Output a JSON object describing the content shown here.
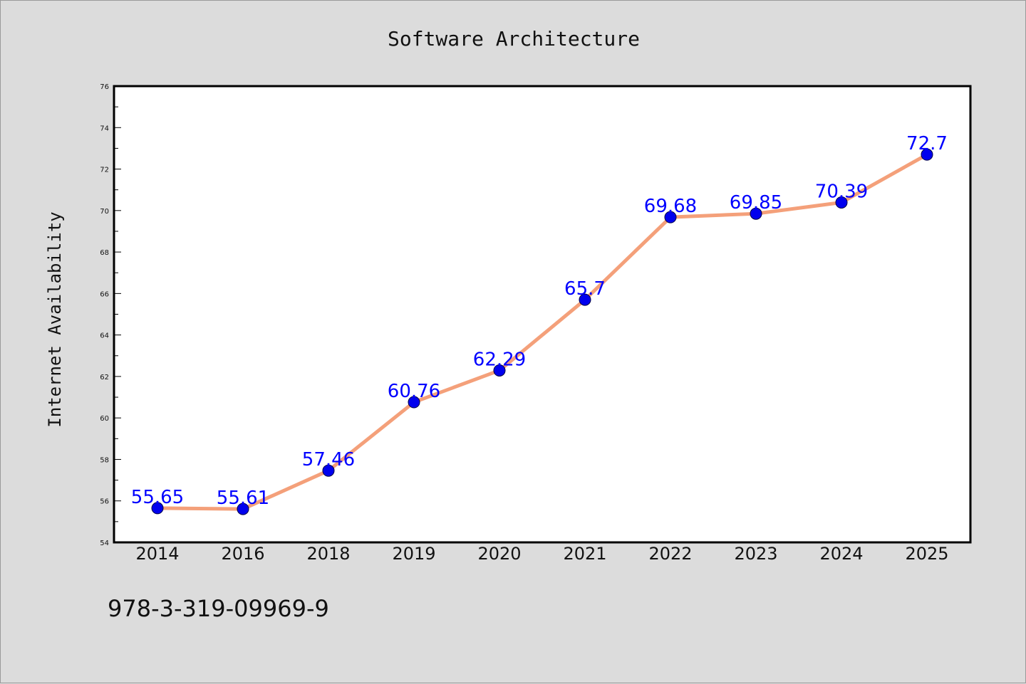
{
  "chart_data": {
    "type": "line",
    "title": "Software Architecture",
    "xlabel": "",
    "ylabel": "Internet Availability",
    "categories": [
      "2014",
      "2016",
      "2018",
      "2019",
      "2020",
      "2021",
      "2022",
      "2023",
      "2024",
      "2025"
    ],
    "series": [
      {
        "values": [
          55.65,
          55.61,
          57.46,
          60.76,
          62.29,
          65.7,
          69.68,
          69.85,
          70.39,
          72.7
        ],
        "data_labels": [
          "55.65",
          "55.61",
          "57.46",
          "60.76",
          "62.29",
          "65.7",
          "69.68",
          "69.85",
          "70.39",
          "72.7"
        ]
      }
    ],
    "ylim": [
      54,
      76
    ],
    "yticks": [
      "54",
      "56",
      "58",
      "60",
      "62",
      "64",
      "66",
      "68",
      "70",
      "72",
      "74",
      "76"
    ],
    "grid": false,
    "colors": {
      "line": "#f4a07a",
      "marker": "#0000ee",
      "label": "#0000ff"
    }
  },
  "footnote": "978-3-319-09969-9"
}
